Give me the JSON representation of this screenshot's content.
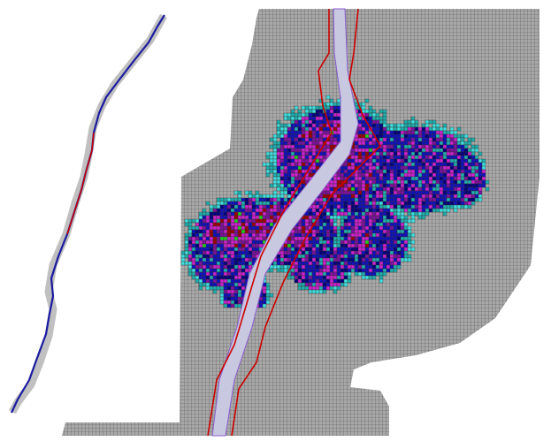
{
  "colors": {
    "background": "#ffffff",
    "grid_fill": "#a8a8a8",
    "grid_line": "#505050",
    "river_overview": "#1a1aa0",
    "river_overview_band": "#c0c0c0",
    "bank_line": "#cc0000",
    "channel_line": "#8a5cd0",
    "channel_fill": "#c8c8e0",
    "flood_palette": [
      "#20b0b0",
      "#40e0e0",
      "#1010c0",
      "#000080",
      "#8010a0",
      "#d020d0",
      "#a00000",
      "#20d020"
    ]
  }
}
